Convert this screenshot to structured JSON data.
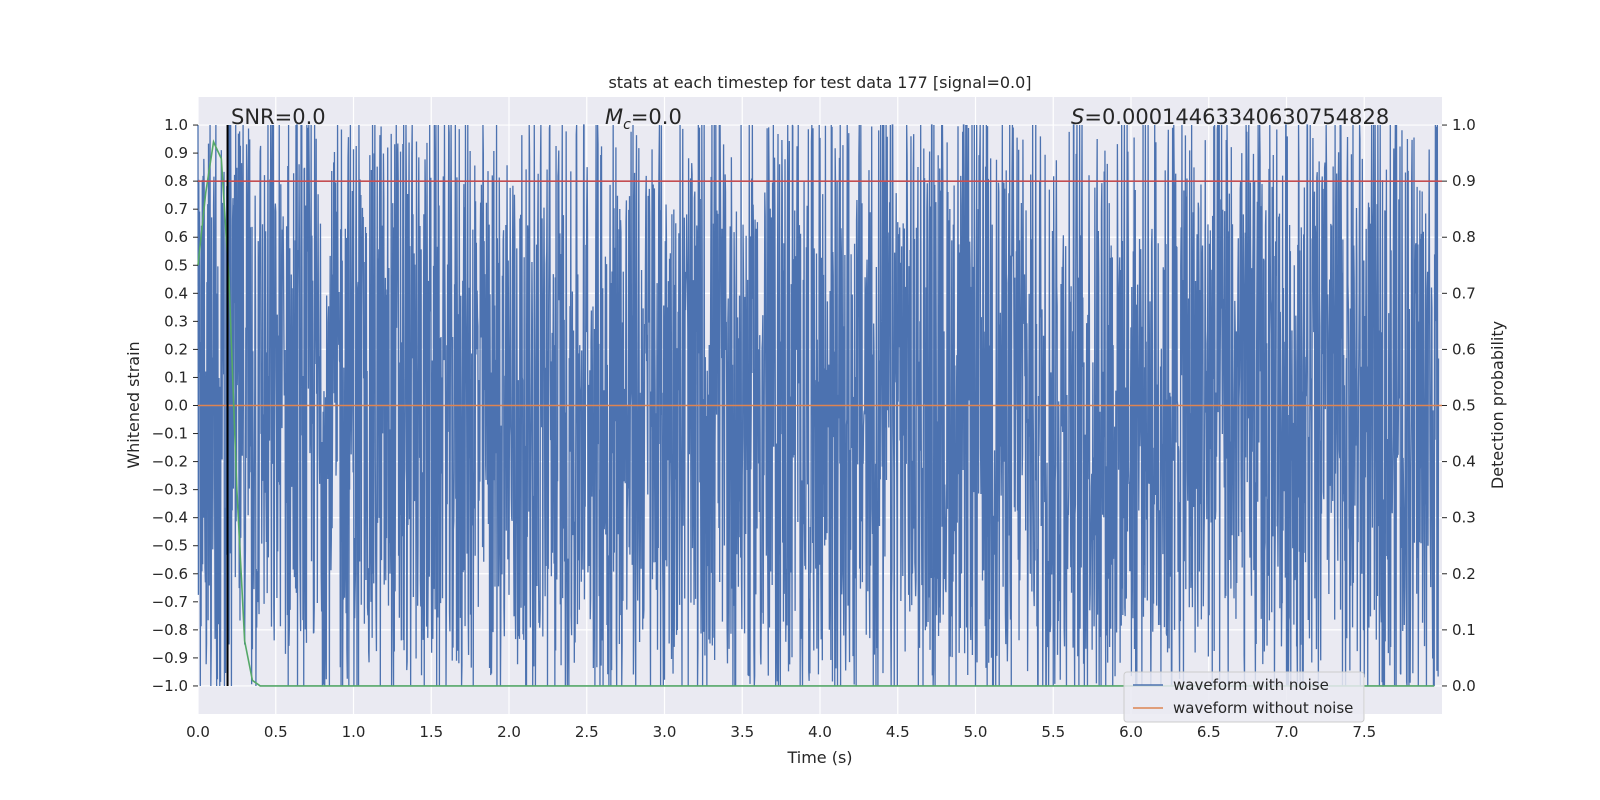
{
  "chart_data": {
    "type": "line",
    "title": "stats at each timestep for test data 177 [signal=0.0]",
    "xlabel": "Time (s)",
    "ylabel_left": "Whitened strain",
    "ylabel_right": "Detection probability",
    "xlim": [
      0.0,
      8.0
    ],
    "ylim_left": [
      -1.1,
      1.1
    ],
    "ylim_right": [
      -0.05,
      1.05
    ],
    "x_ticks": [
      "0.0",
      "0.5",
      "1.0",
      "1.5",
      "2.0",
      "2.5",
      "3.0",
      "3.5",
      "4.0",
      "4.5",
      "5.0",
      "5.5",
      "6.0",
      "6.5",
      "7.0",
      "7.5"
    ],
    "y_ticks_left": [
      "1.0",
      "0.9",
      "0.8",
      "0.7",
      "0.6",
      "0.5",
      "0.4",
      "0.3",
      "0.2",
      "0.1",
      "0.0",
      "−0.1",
      "−0.2",
      "−0.3",
      "−0.4",
      "−0.5",
      "−0.6",
      "−0.7",
      "−0.8",
      "−0.9",
      "−1.0"
    ],
    "y_ticks_right": [
      "1.0",
      "0.9",
      "0.8",
      "0.7",
      "0.6",
      "0.5",
      "0.4",
      "0.3",
      "0.2",
      "0.1",
      "0.0"
    ],
    "grid": true,
    "legend_position": "lower-right",
    "annotations": {
      "snr": "SNR=0.0",
      "mc_symbol": "M",
      "mc_sub": "c",
      "mc_value": "=0.0",
      "s_symbol": "S",
      "s_value": "=0.00014463340630754828"
    },
    "series": [
      {
        "name": "waveform with noise",
        "color": "#4c72b0",
        "description_values": "dense noisy whitened strain; peaks reach ±1.0, envelope mostly between −0.9 and 0.9",
        "sample_rate": 400
      },
      {
        "name": "waveform without noise",
        "color": "#dd8452",
        "x": [
          0.0,
          8.0
        ],
        "y": [
          0.0,
          0.0
        ]
      },
      {
        "color": "#55a868",
        "axis": "right",
        "x": [
          0.0,
          0.05,
          0.1,
          0.15,
          0.2,
          0.25,
          0.3,
          0.35,
          0.4,
          7.95
        ],
        "y": [
          0.75,
          0.88,
          0.97,
          0.94,
          0.72,
          0.35,
          0.08,
          0.01,
          0.0,
          0.0
        ]
      },
      {
        "color": "#c44e52",
        "axis": "right",
        "x": [
          0.0,
          8.0
        ],
        "y": [
          0.9,
          0.9
        ]
      },
      {
        "color": "#000000",
        "type": "vline",
        "x": [
          0.19,
          0.19
        ],
        "y": [
          -1.0,
          1.0
        ]
      }
    ]
  }
}
